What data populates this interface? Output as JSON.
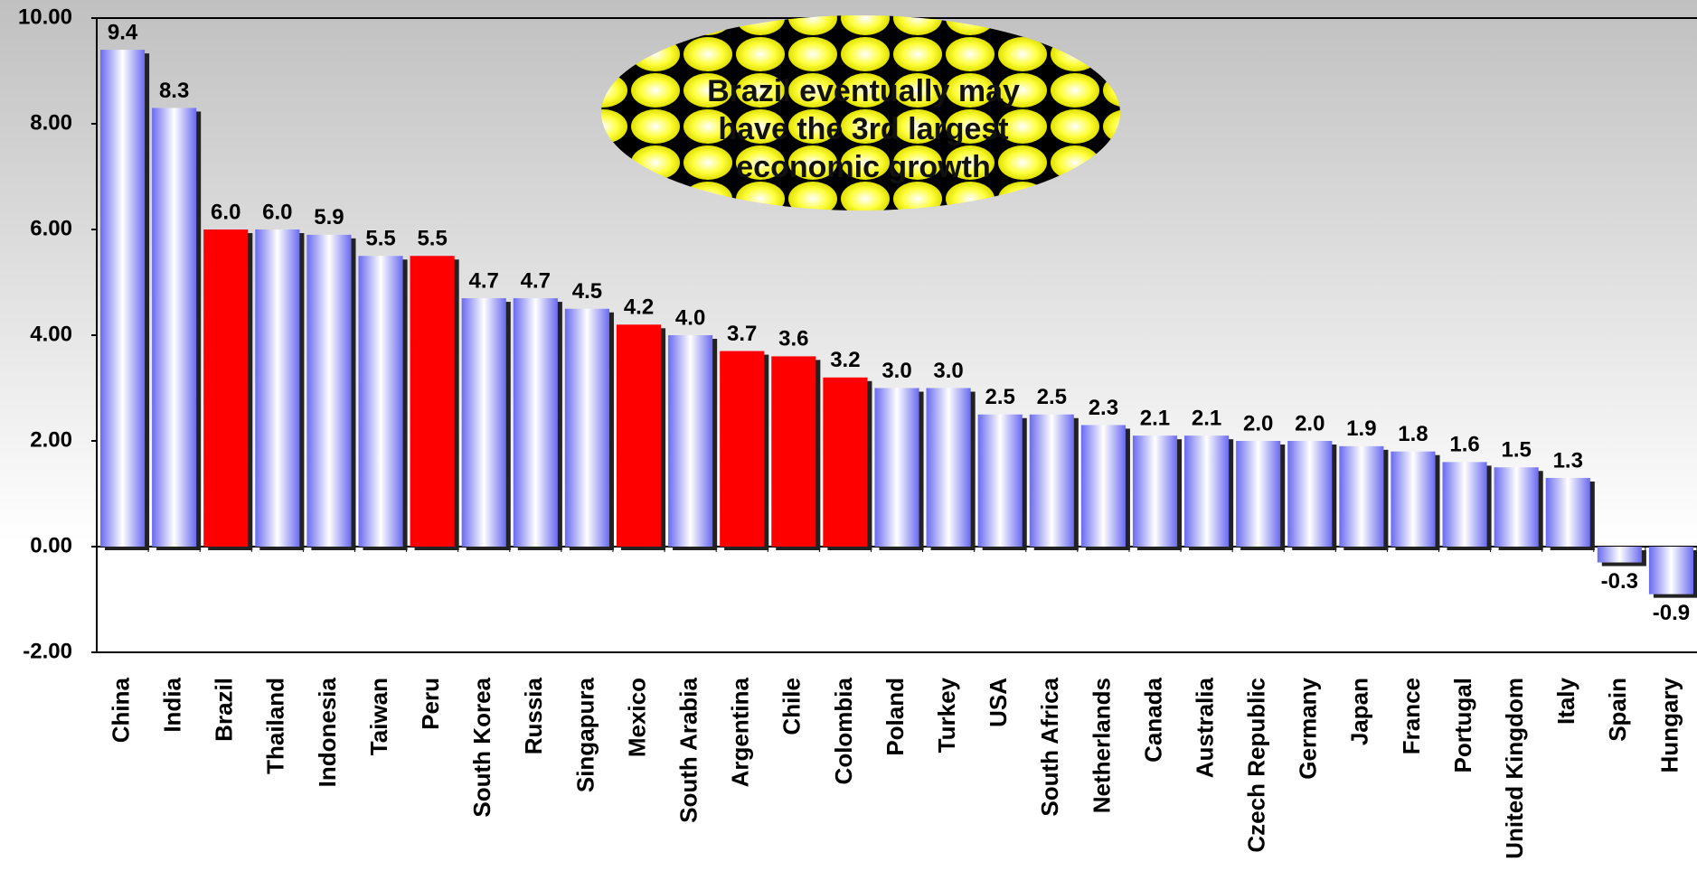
{
  "chart_data": {
    "type": "bar",
    "categories": [
      "China",
      "India",
      "Brazil",
      "Thailand",
      "Indonesia",
      "Taiwan",
      "Peru",
      "South Korea",
      "Russia",
      "Singapura",
      "Mexico",
      "South Arabia",
      "Argentina",
      "Chile",
      "Colombia",
      "Poland",
      "Turkey",
      "USA",
      "South Africa",
      "Netherlands",
      "Canada",
      "Australia",
      "Czech Republic",
      "Germany",
      "Japan",
      "France",
      "Portugal",
      "United Kingdom",
      "Italy",
      "Spain",
      "Hungary"
    ],
    "values": [
      9.4,
      8.3,
      6.0,
      6.0,
      5.9,
      5.5,
      5.5,
      4.7,
      4.7,
      4.5,
      4.2,
      4.0,
      3.7,
      3.6,
      3.2,
      3.0,
      3.0,
      2.5,
      2.5,
      2.3,
      2.1,
      2.1,
      2.0,
      2.0,
      1.9,
      1.8,
      1.6,
      1.5,
      1.3,
      -0.3,
      -0.9
    ],
    "value_labels": [
      "9.4",
      "8.3",
      "6.0",
      "6.0",
      "5.9",
      "5.5",
      "5.5",
      "4.7",
      "4.7",
      "4.5",
      "4.2",
      "4.0",
      "3.7",
      "3.6",
      "3.2",
      "3.0",
      "3.0",
      "2.5",
      "2.5",
      "2.3",
      "2.1",
      "2.1",
      "2.0",
      "2.0",
      "1.9",
      "1.8",
      "1.6",
      "1.5",
      "1.3",
      "-0.3",
      "-0.9"
    ],
    "colors": [
      "#6a6af0",
      "#6a6af0",
      "#ff0000",
      "#6a6af0",
      "#6a6af0",
      "#6a6af0",
      "#ff0000",
      "#6a6af0",
      "#6a6af0",
      "#6a6af0",
      "#ff0000",
      "#6a6af0",
      "#ff0000",
      "#ff0000",
      "#ff0000",
      "#6a6af0",
      "#6a6af0",
      "#6a6af0",
      "#6a6af0",
      "#6a6af0",
      "#6a6af0",
      "#6a6af0",
      "#6a6af0",
      "#6a6af0",
      "#6a6af0",
      "#6a6af0",
      "#6a6af0",
      "#6a6af0",
      "#6a6af0",
      "#6a6af0",
      "#6a6af0"
    ],
    "ylim": [
      -2,
      10
    ],
    "yticks": [
      {
        "value": -2,
        "label": "-2.00"
      },
      {
        "value": 0,
        "label": "0.00"
      },
      {
        "value": 2,
        "label": "2.00"
      },
      {
        "value": 4,
        "label": "4.00"
      },
      {
        "value": 6,
        "label": "6.00"
      },
      {
        "value": 8,
        "label": "8.00"
      },
      {
        "value": 10,
        "label": "10.00"
      }
    ],
    "annotation": "Brazil eventually may have the 3rd largest economic growth"
  }
}
